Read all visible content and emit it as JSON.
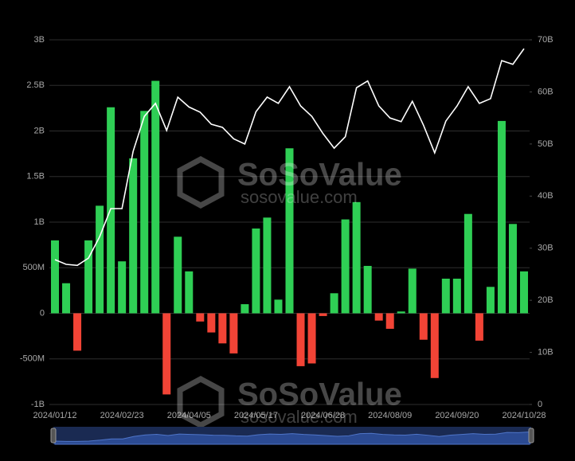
{
  "chart_data": {
    "type": "bar",
    "watermark": "SoSoValue",
    "watermark_url": "sosovalue.com",
    "categories": [
      "2024/01/12",
      null,
      null,
      null,
      null,
      null,
      "2024/02/23",
      null,
      null,
      null,
      null,
      null,
      "2024/04/05",
      null,
      null,
      null,
      null,
      null,
      "2024/05/17",
      null,
      null,
      null,
      null,
      null,
      "2024/06/28",
      null,
      null,
      null,
      null,
      null,
      "2024/08/09",
      null,
      null,
      null,
      null,
      null,
      "2024/09/20",
      null,
      null,
      null,
      null,
      null,
      "2024/10/28"
    ],
    "series": [
      {
        "type": "bar",
        "color": "#2fcf55",
        "negative_color": "#f24436",
        "values": [
          0.8,
          0.33,
          -0.41,
          0.8,
          1.18,
          2.26,
          0.57,
          1.7,
          2.22,
          2.55,
          -0.89,
          0.84,
          0.46,
          -0.09,
          -0.21,
          -0.33,
          -0.44,
          0.1,
          0.93,
          1.05,
          0.15,
          1.81,
          -0.58,
          -0.55,
          -0.03,
          0.22,
          1.03,
          1.22,
          0.52,
          -0.08,
          -0.17,
          0.02,
          0.49,
          -0.29,
          -0.71,
          0.38,
          0.38,
          1.09,
          -0.3,
          0.29,
          2.11,
          0.98,
          0.46
        ]
      },
      {
        "type": "line",
        "color": "#ffffff",
        "axis": "y2",
        "values": [
          27.8,
          26.9,
          26.7,
          28.1,
          32.2,
          37.6,
          37.6,
          48.6,
          55.3,
          57.8,
          52.6,
          59.0,
          57.1,
          56.1,
          53.8,
          53.2,
          51.0,
          50.0,
          56.2,
          59.0,
          57.8,
          61.0,
          57.3,
          55.3,
          52.0,
          49.2,
          51.4,
          60.8,
          62.1,
          57.3,
          55.0,
          54.3,
          58.2,
          53.6,
          48.3,
          54.4,
          57.3,
          61.0,
          57.8,
          58.7,
          66.0,
          65.3,
          68.3
        ]
      }
    ],
    "ylim": [
      -1,
      3
    ],
    "yticks": [
      {
        "value": -1,
        "label": "-1B"
      },
      {
        "value": -0.5,
        "label": "-500M"
      },
      0,
      {
        "value": 0.5,
        "label": "500M"
      },
      {
        "value": 1,
        "label": "1B"
      },
      {
        "value": 1.5,
        "label": "1.5B"
      },
      {
        "value": 2,
        "label": "2B"
      },
      {
        "value": 2.5,
        "label": "2.5B"
      },
      {
        "value": 3,
        "label": "3B"
      }
    ],
    "y2lim": [
      0,
      70
    ],
    "y2ticks": [
      0,
      {
        "value": 10,
        "label": "10B"
      },
      {
        "value": 20,
        "label": "20B"
      },
      {
        "value": 30,
        "label": "30B"
      },
      {
        "value": 40,
        "label": "40B"
      },
      {
        "value": 50,
        "label": "50B"
      },
      {
        "value": 60,
        "label": "60B"
      },
      {
        "value": 70,
        "label": "70B"
      }
    ],
    "grid": true
  }
}
